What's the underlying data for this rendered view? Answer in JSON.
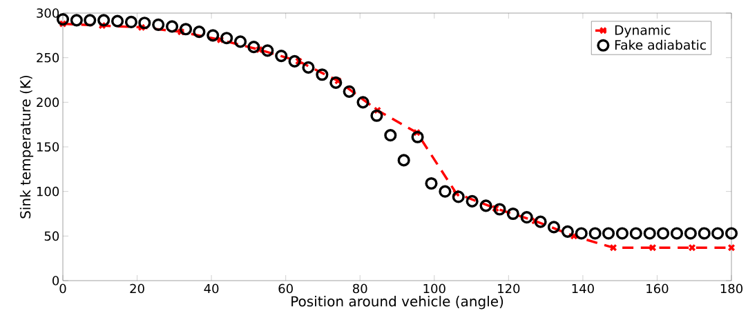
{
  "chart_data": {
    "type": "line",
    "xlabel": "Position around vehicle (angle)",
    "ylabel": "Sink temperature (K)",
    "xlim": [
      0,
      180
    ],
    "ylim": [
      0,
      300
    ],
    "xticks": [
      0,
      20,
      40,
      60,
      80,
      100,
      120,
      140,
      160,
      180
    ],
    "yticks": [
      0,
      50,
      100,
      150,
      200,
      250,
      300
    ],
    "grid": false,
    "legend": "top right",
    "series": [
      {
        "name": "Dynamic",
        "color": "#ff0000",
        "marker": "cross",
        "line_style": "dashed",
        "x": [
          0,
          10.6,
          21.2,
          31.8,
          42.4,
          52.9,
          63.5,
          74.1,
          84.7,
          95.3,
          105.9,
          116.5,
          127.1,
          137.6,
          148.2,
          158.8,
          169.4,
          180
        ],
        "values": [
          288,
          286,
          284,
          279,
          270,
          259,
          246,
          224,
          191,
          166,
          98,
          81,
          67,
          50,
          37,
          37,
          37,
          37
        ]
      },
      {
        "name": "Fake adiabatic",
        "type": "scatter",
        "color": "#000000",
        "marker": "circle",
        "x": [
          0,
          3.7,
          7.3,
          11.0,
          14.7,
          18.4,
          22.0,
          25.7,
          29.4,
          33.1,
          36.7,
          40.4,
          44.1,
          47.8,
          51.4,
          55.1,
          58.8,
          62.4,
          66.1,
          69.8,
          73.5,
          77.1,
          80.8,
          84.5,
          88.2,
          91.8,
          95.5,
          99.2,
          102.9,
          106.5,
          110.2,
          113.9,
          117.6,
          121.2,
          124.9,
          128.6,
          132.2,
          135.9,
          139.6,
          143.3,
          146.9,
          150.6,
          154.3,
          158.0,
          161.6,
          165.3,
          169.0,
          172.7,
          176.3,
          180
        ],
        "values": [
          293,
          292,
          292,
          292,
          291,
          290,
          289,
          287,
          285,
          282,
          279,
          275,
          272,
          268,
          262,
          258,
          252,
          246,
          239,
          231,
          222,
          212,
          200,
          185,
          163,
          135,
          161,
          109,
          100,
          94,
          89,
          84,
          80,
          75,
          71,
          66,
          60,
          55,
          53,
          53,
          53,
          53,
          53,
          53,
          53,
          53,
          53,
          53,
          53,
          53
        ]
      }
    ]
  }
}
